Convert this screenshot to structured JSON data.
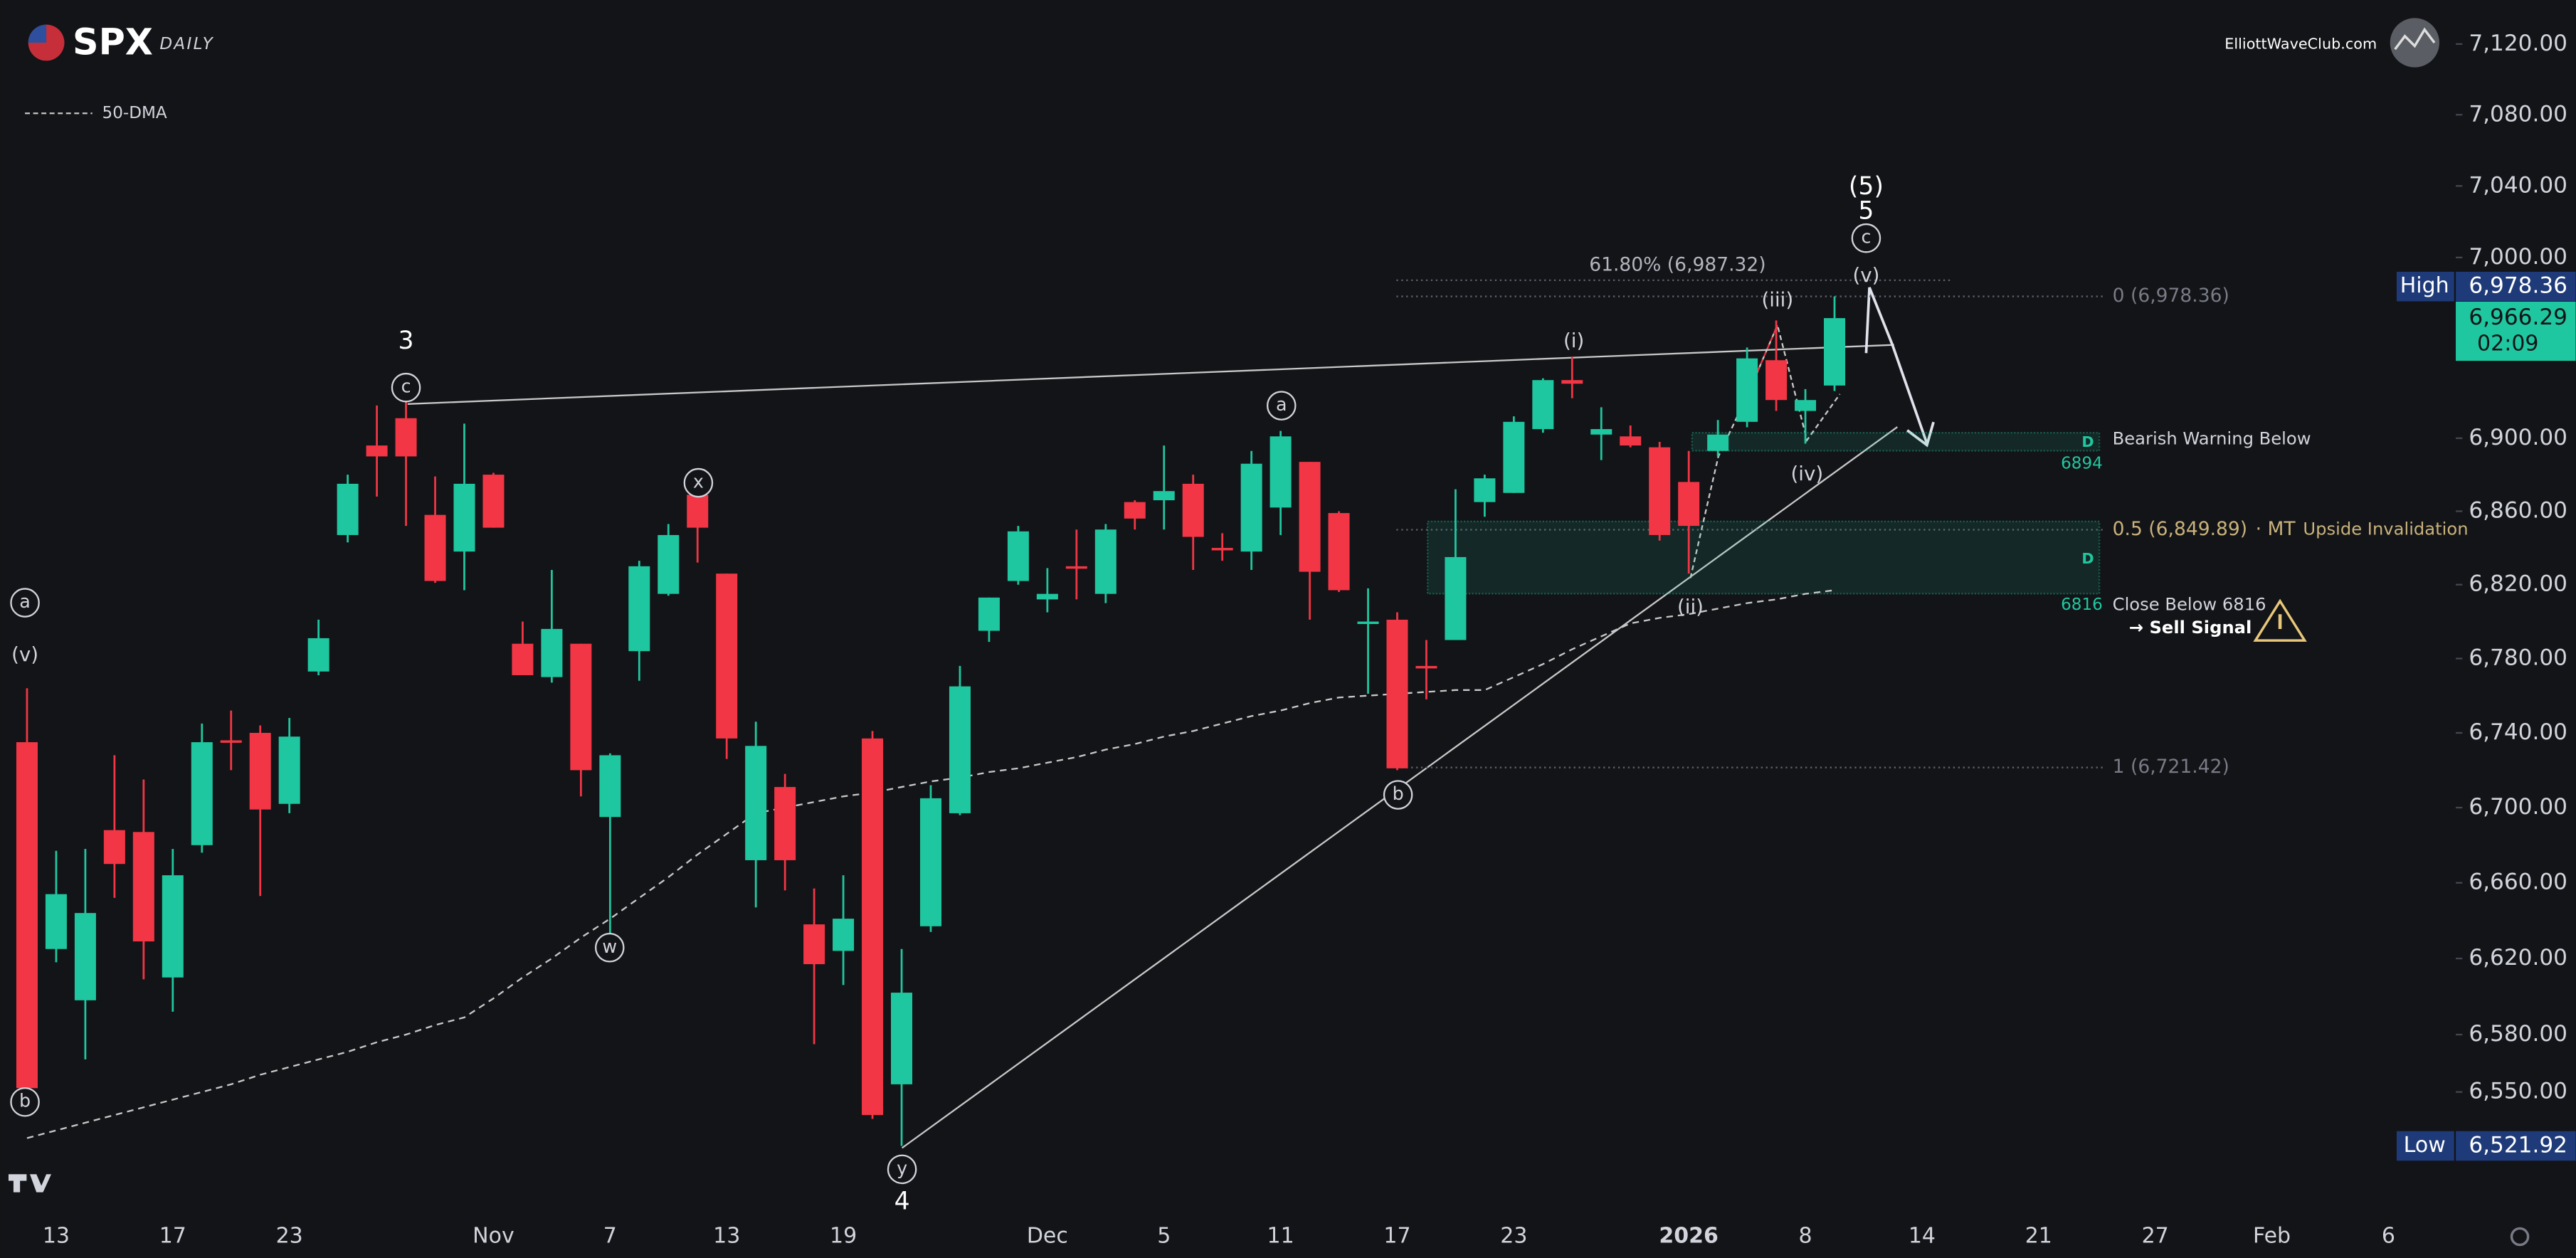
{
  "chart_data": {
    "type": "candlestick",
    "title": "SPX",
    "subtitle": "DAILY",
    "source": "ElliottWaveClub.com",
    "log": true,
    "grid": false,
    "up_color": "#1fc7a0",
    "down_color": "#f23645",
    "categories": [
      null,
      "13",
      null,
      null,
      null,
      "17",
      null,
      null,
      null,
      "23",
      null,
      null,
      null,
      null,
      null,
      null,
      "Nov",
      null,
      null,
      null,
      "7",
      null,
      null,
      null,
      "13",
      null,
      null,
      null,
      "19",
      null,
      null,
      null,
      null,
      null,
      null,
      "Dec",
      null,
      null,
      null,
      "5",
      null,
      null,
      null,
      "11",
      null,
      null,
      null,
      "17",
      null,
      null,
      null,
      "23",
      null,
      null,
      null,
      null,
      null,
      "2026",
      null,
      null,
      null,
      "8",
      null,
      null,
      null,
      "14",
      null,
      null,
      null,
      "21",
      null,
      null,
      null,
      "27",
      null,
      null,
      null,
      "Feb",
      null,
      null,
      null,
      "6",
      null,
      null
    ],
    "ohlc": {
      "open": [
        6735,
        6625,
        6598,
        6688,
        6687,
        6610,
        6680,
        6736,
        6740,
        6702,
        6773,
        6847,
        6896,
        6911,
        6858,
        6838,
        6880,
        6788,
        6770,
        6788,
        6695,
        6784,
        6815,
        6869,
        6826,
        6672,
        6711,
        6638,
        6624,
        6737,
        6554,
        6637,
        6697,
        6795,
        6822,
        6812,
        6830,
        6815,
        6865,
        6866,
        6875,
        6840,
        6838,
        6862,
        6887,
        6859,
        6799,
        6801,
        6776,
        6790,
        6865,
        6870,
        6905,
        6932,
        6902,
        6901,
        6895,
        6876,
        6893,
        6909,
        6943,
        6915,
        6929,
        null,
        null,
        null,
        null,
        null,
        null,
        null,
        null,
        null,
        null,
        null,
        null,
        null,
        null,
        null,
        null,
        null,
        null,
        null,
        null,
        null
      ],
      "high": [
        6764,
        6677,
        6678,
        6728,
        6715,
        6678,
        6745,
        6752,
        6744,
        6748,
        6801,
        6880,
        6918,
        6920,
        6879,
        6908,
        6881,
        6800,
        6828,
        6788,
        6729,
        6833,
        6853,
        6875,
        6826,
        6746,
        6718,
        6657,
        6664,
        6741,
        6625,
        6712,
        6776,
        6813,
        6852,
        6829,
        6850,
        6853,
        6866,
        6896,
        6880,
        6848,
        6893,
        6904,
        6887,
        6860,
        6818,
        6805,
        6790,
        6872,
        6880,
        6912,
        6933,
        6945,
        6917,
        6907,
        6898,
        6893,
        6910,
        6950,
        6965,
        6927,
        6978.36,
        null,
        null,
        null,
        null,
        null,
        null,
        null,
        null,
        null,
        null,
        null,
        null,
        null,
        null,
        null,
        null,
        null,
        null,
        null,
        null,
        null
      ],
      "low": [
        6550,
        6618,
        6567,
        6652,
        6609,
        6592,
        6676,
        6720,
        6653,
        6697,
        6771,
        6843,
        6868,
        6852,
        6821,
        6817,
        6851,
        6771,
        6767,
        6706,
        6631,
        6768,
        6814,
        6832,
        6726,
        6647,
        6656,
        6575,
        6606,
        6536,
        6521.92,
        6634,
        6696,
        6789,
        6820,
        6805,
        6812,
        6810,
        6850,
        6850,
        6828,
        6833,
        6828,
        6847,
        6801,
        6816,
        6761,
        6720,
        6758,
        6790,
        6857,
        6870,
        6903,
        6922,
        6888,
        6895,
        6844,
        6826,
        6890,
        6906,
        6915,
        6897,
        6926,
        null,
        null,
        null,
        null,
        null,
        null,
        null,
        null,
        null,
        null,
        null,
        null,
        null,
        null,
        null,
        null,
        null,
        null,
        null,
        null,
        null
      ],
      "close": [
        6552,
        6654,
        6644,
        6670,
        6629,
        6664,
        6735,
        6735,
        6699,
        6738,
        6791,
        6875,
        6890,
        6890,
        6822,
        6875,
        6851,
        6771,
        6796,
        6720,
        6728,
        6830,
        6847,
        6851,
        6737,
        6733,
        6672,
        6617,
        6641,
        6538,
        6602,
        6705,
        6765,
        6813,
        6849,
        6815,
        6829,
        6850,
        6856,
        6871,
        6846,
        6839,
        6886,
        6901,
        6827,
        6817,
        6800,
        6721,
        6775,
        6835,
        6878,
        6909,
        6932,
        6930,
        6905,
        6896,
        6847,
        6852,
        6902,
        6944,
        6921,
        6921,
        6966.29,
        null,
        null,
        null,
        null,
        null,
        null,
        null,
        null,
        null,
        null,
        null,
        null,
        null,
        null,
        null,
        null,
        null,
        null,
        null,
        null,
        null
      ]
    },
    "series": [
      {
        "name": "50-DMA",
        "color": "#c8c8c8",
        "values": [
          6526,
          6530,
          6534,
          6538,
          6542,
          6546,
          6550,
          6554,
          6559,
          6563,
          6567,
          6571,
          6576,
          6580,
          6585,
          6589,
          6599,
          6610,
          6620,
          6631,
          6641,
          6652,
          6663,
          6675,
          6686,
          6697,
          6700,
          6703,
          6706,
          6708,
          6711,
          6714,
          6716,
          6719,
          6721,
          6724,
          6727,
          6731,
          6734,
          6738,
          6741,
          6745,
          6749,
          6752,
          6756,
          6759,
          6760,
          6761,
          6762,
          6763,
          6763,
          6770,
          6777,
          6785,
          6792,
          6799,
          6802,
          6804,
          6807,
          6810,
          6812,
          6815,
          6817,
          null,
          null,
          null,
          null,
          null,
          null,
          null,
          null,
          null,
          null,
          null,
          null,
          null,
          null,
          null,
          null,
          null,
          null,
          null,
          null,
          null
        ]
      }
    ],
    "ylim": [
      6486,
      7145
    ],
    "yticks": [
      {
        "value": 7120,
        "label": "7,120.00"
      },
      {
        "value": 7080,
        "label": "7,080.00"
      },
      {
        "value": 7040,
        "label": "7,040.00"
      },
      {
        "value": 7000,
        "label": "7,000.00"
      },
      {
        "value": 6900,
        "label": "6,900.00"
      },
      {
        "value": 6860,
        "label": "6,860.00"
      },
      {
        "value": 6820,
        "label": "6,820.00"
      },
      {
        "value": 6780,
        "label": "6,780.00"
      },
      {
        "value": 6740,
        "label": "6,740.00"
      },
      {
        "value": 6700,
        "label": "6,700.00"
      },
      {
        "value": 6660,
        "label": "6,660.00"
      },
      {
        "value": 6620,
        "label": "6,620.00"
      },
      {
        "value": 6580,
        "label": "6,580.00"
      },
      {
        "value": 6550,
        "label": "6,550.00"
      }
    ],
    "levels": [
      {
        "label": "61.80% (6,987.32)",
        "value": 6987.32,
        "color": "#b2b5be"
      },
      {
        "label": "0 (6,978.36)",
        "value": 6978.36,
        "color": "#787b86"
      },
      {
        "label": "0.5 (6,849.89)",
        "value": 6849.89,
        "color": "#c9b27c",
        "suffix": "· MT",
        "tag": "Upside Invalidation"
      },
      {
        "label": "1 (6,721.42)",
        "value": 6721.42,
        "color": "#787b86"
      }
    ],
    "zones": [
      {
        "value": 6894,
        "label": "6894",
        "code": "D",
        "text": "Bearish Warning Below"
      },
      {
        "value": 6816,
        "label": "6816",
        "code": "D",
        "text": "Close Below 6816",
        "signal": "→ Sell Signal"
      }
    ],
    "price_labels": [
      {
        "name": "High",
        "value": 6978.36,
        "label": "6,978.36",
        "color": "#1e3a78"
      },
      {
        "value": 6966.29,
        "label": "6,966.29",
        "timer": "02:09",
        "color": "#1fc7a0"
      },
      {
        "name": "Low",
        "value": 6521.92,
        "label": "6,521.92",
        "color": "#1e3a78"
      }
    ],
    "wave_labels": [
      {
        "text": "3",
        "circled": false
      },
      {
        "text": "c",
        "circled": true
      },
      {
        "text": "a",
        "circled": true
      },
      {
        "text": "(v)",
        "circled": false
      },
      {
        "text": "b",
        "circled": true
      },
      {
        "text": "x",
        "circled": true
      },
      {
        "text": "w",
        "circled": true
      },
      {
        "text": "y",
        "circled": true
      },
      {
        "text": "4",
        "circled": false
      },
      {
        "text": "a",
        "circled": true
      },
      {
        "text": "b",
        "circled": true
      },
      {
        "text": "(i)",
        "circled": false
      },
      {
        "text": "(ii)",
        "circled": false
      },
      {
        "text": "(iii)",
        "circled": false
      },
      {
        "text": "(iv)",
        "circled": false
      },
      {
        "text": "(v)",
        "circled": false
      },
      {
        "text": "c",
        "circled": true
      },
      {
        "text": "5",
        "circled": false
      },
      {
        "text": "(5)",
        "circled": false
      }
    ]
  }
}
